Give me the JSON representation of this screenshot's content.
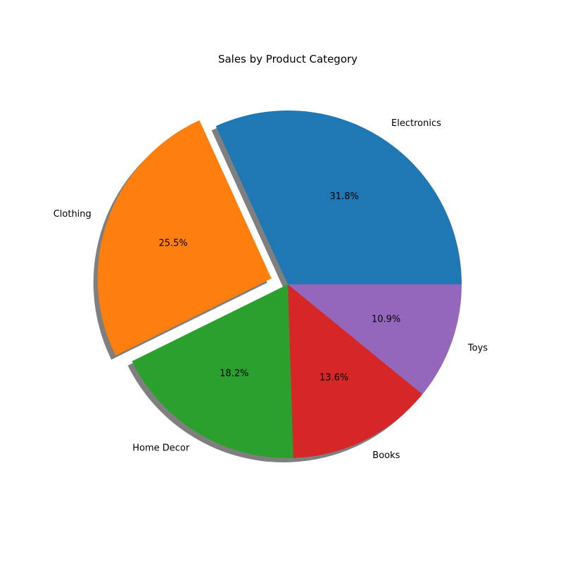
{
  "chart_data": {
    "type": "pie",
    "title": "Sales by Product Category",
    "categories": [
      "Electronics",
      "Clothing",
      "Home Decor",
      "Books",
      "Toys"
    ],
    "values": [
      31.8,
      25.5,
      18.2,
      13.6,
      10.9
    ],
    "percent_labels": [
      "31.8%",
      "25.5%",
      "18.2%",
      "13.6%",
      "10.9%"
    ],
    "colors": [
      "#1f77b4",
      "#ff7f0e",
      "#2ca02c",
      "#d62728",
      "#9467bd"
    ],
    "exploded": [
      false,
      true,
      false,
      false,
      false
    ],
    "shadow": true,
    "start_angle_deg": 0,
    "direction": "counterclockwise"
  }
}
